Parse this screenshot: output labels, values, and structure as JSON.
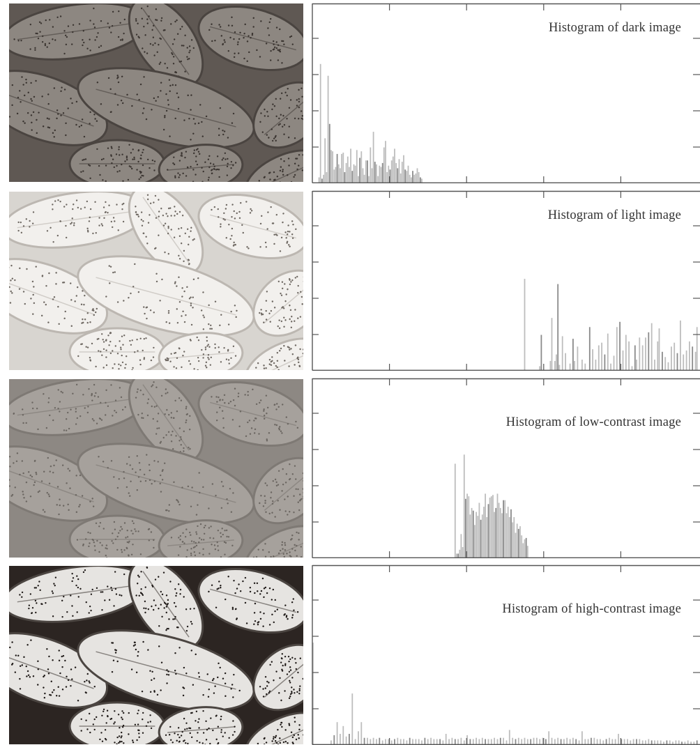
{
  "colors": {
    "frame": "#555555",
    "bar": "#bdbdbd",
    "bar_dark": "#8a8a8a",
    "photo_bg": "#6d6560"
  },
  "panels": [
    {
      "photo": {
        "name": "dark image",
        "bg": "#5f5853",
        "cell": "#8d8781",
        "cell_edge": "#4a4440",
        "dot": "#3a3430"
      },
      "chart_data": {
        "type": "bar",
        "title": "Histogram of dark image",
        "xlabel": "",
        "ylabel": "",
        "xlim": [
          0,
          255
        ],
        "ylim": [
          0,
          100
        ],
        "x": [
          4,
          5,
          6,
          7,
          8,
          9,
          10,
          11,
          12,
          13,
          14,
          15,
          16,
          17,
          18,
          19,
          20,
          21,
          22,
          23,
          24,
          25,
          26,
          27,
          28,
          29,
          30,
          31,
          32,
          33,
          34,
          35,
          36,
          37,
          38,
          39,
          40,
          41,
          42,
          43,
          44,
          45,
          46,
          47,
          48,
          49,
          50,
          51,
          52,
          53,
          54,
          55,
          56,
          57,
          58,
          59,
          60,
          61,
          62,
          63,
          64,
          65,
          66,
          67,
          68,
          69,
          70,
          71,
          72
        ],
        "values": [
          4,
          91,
          3,
          6,
          34,
          8,
          82,
          45,
          25,
          24,
          10,
          12,
          22,
          14,
          11,
          22,
          23,
          8,
          15,
          20,
          12,
          26,
          9,
          14,
          13,
          25,
          5,
          19,
          24,
          11,
          6,
          17,
          17,
          5,
          27,
          11,
          39,
          16,
          14,
          5,
          13,
          12,
          15,
          27,
          32,
          8,
          13,
          10,
          17,
          20,
          26,
          15,
          11,
          18,
          7,
          16,
          21,
          10,
          9,
          13,
          6,
          4,
          9,
          6,
          7,
          11,
          8,
          4,
          3
        ]
      }
    },
    {
      "photo": {
        "name": "light image",
        "bg": "#d8d5d0",
        "cell": "#f2f0ed",
        "cell_edge": "#bcb7b1",
        "dot": "#6e6862"
      },
      "chart_data": {
        "type": "bar",
        "title": "Histogram of light image",
        "xlabel": "",
        "ylabel": "",
        "xlim": [
          0,
          255
        ],
        "ylim": [
          0,
          100
        ],
        "x": [
          140,
          150,
          151,
          157,
          158,
          160,
          161,
          162,
          163,
          165,
          167,
          170,
          172,
          173,
          175,
          178,
          180,
          183,
          185,
          187,
          189,
          191,
          193,
          195,
          197,
          199,
          201,
          203,
          205,
          207,
          209,
          211,
          213,
          214,
          216,
          218,
          220,
          222,
          224,
          226,
          228,
          229,
          231,
          233,
          235,
          237,
          239,
          241,
          243,
          245,
          247,
          249,
          251,
          253,
          254
        ],
        "values": [
          70,
          3,
          27,
          7,
          40,
          7,
          12,
          66,
          4,
          26,
          13,
          5,
          24,
          7,
          18,
          8,
          5,
          33,
          16,
          8,
          19,
          21,
          12,
          28,
          5,
          11,
          33,
          37,
          15,
          27,
          22,
          3,
          19,
          8,
          25,
          19,
          25,
          29,
          36,
          8,
          22,
          32,
          14,
          10,
          6,
          18,
          21,
          13,
          38,
          12,
          15,
          22,
          18,
          14,
          33
        ]
      }
    },
    {
      "photo": {
        "name": "low-contrast image",
        "bg": "#8d8883",
        "cell": "#a6a19c",
        "cell_edge": "#7e7974",
        "dot": "#6b6661"
      },
      "chart_data": {
        "type": "bar",
        "title": "Histogram of low-contrast image",
        "xlabel": "",
        "ylabel": "",
        "xlim": [
          0,
          255
        ],
        "ylim": [
          0,
          100
        ],
        "x": [
          94,
          95,
          96,
          97,
          98,
          99,
          100,
          101,
          102,
          103,
          104,
          105,
          106,
          107,
          108,
          109,
          110,
          111,
          112,
          113,
          114,
          115,
          116,
          117,
          118,
          119,
          120,
          121,
          122,
          123,
          124,
          125,
          126,
          127,
          128,
          129,
          130,
          131,
          132,
          133,
          134,
          135,
          136,
          137,
          138,
          139,
          140,
          141,
          142
        ],
        "values": [
          72,
          3,
          3,
          6,
          18,
          8,
          79,
          45,
          49,
          47,
          33,
          38,
          36,
          25,
          35,
          32,
          42,
          29,
          33,
          39,
          49,
          31,
          41,
          46,
          47,
          48,
          35,
          38,
          49,
          42,
          38,
          34,
          44,
          44,
          34,
          39,
          31,
          37,
          27,
          31,
          19,
          26,
          22,
          24,
          17,
          11,
          14,
          15,
          9
        ]
      }
    },
    {
      "photo": {
        "name": "high-contrast image",
        "bg": "#2c2522",
        "cell": "#e6e4e1",
        "cell_edge": "#4b4541",
        "dot": "#1e1917"
      },
      "chart_data": {
        "type": "bar",
        "title": "Histogram of high-contrast image",
        "xlabel": "",
        "ylabel": "",
        "xlim": [
          0,
          255
        ],
        "ylim": [
          0,
          100
        ],
        "x": [
          0,
          12,
          14,
          16,
          18,
          20,
          22,
          24,
          26,
          28,
          30,
          32,
          34,
          36,
          38,
          40,
          42,
          44,
          46,
          48,
          50,
          52,
          54,
          56,
          58,
          60,
          62,
          64,
          66,
          68,
          70,
          72,
          74,
          76,
          78,
          80,
          82,
          84,
          86,
          88,
          90,
          92,
          94,
          96,
          98,
          100,
          102,
          104,
          106,
          108,
          110,
          112,
          114,
          116,
          118,
          120,
          122,
          124,
          126,
          128,
          130,
          132,
          134,
          136,
          138,
          140,
          142,
          144,
          146,
          148,
          150,
          152,
          154,
          156,
          158,
          160,
          162,
          164,
          166,
          168,
          170,
          172,
          174,
          176,
          178,
          180,
          182,
          184,
          186,
          188,
          190,
          192,
          194,
          196,
          198,
          200,
          202,
          204,
          206,
          208,
          210,
          212,
          214,
          216,
          218,
          220,
          222,
          224,
          226,
          228,
          230,
          232,
          234,
          236,
          238,
          240,
          242,
          244,
          246,
          248,
          250,
          252,
          254
        ],
        "values": [
          78,
          3,
          7,
          17,
          8,
          14,
          6,
          8,
          39,
          4,
          10,
          17,
          5,
          5,
          4,
          5,
          4,
          5,
          3,
          4,
          4,
          3,
          4,
          5,
          4,
          4,
          3,
          5,
          4,
          4,
          4,
          3,
          5,
          4,
          5,
          4,
          4,
          4,
          3,
          8,
          4,
          5,
          4,
          4,
          5,
          3,
          7,
          4,
          4,
          5,
          4,
          5,
          4,
          4,
          4,
          5,
          4,
          5,
          5,
          3,
          11,
          5,
          4,
          5,
          4,
          5,
          4,
          4,
          5,
          5,
          4,
          5,
          4,
          10,
          5,
          4,
          5,
          4,
          4,
          5,
          4,
          5,
          4,
          3,
          10,
          4,
          4,
          5,
          5,
          4,
          4,
          3,
          4,
          5,
          4,
          4,
          8,
          4,
          4,
          4,
          3,
          4,
          4,
          4,
          3,
          3,
          4,
          3,
          3,
          3,
          3,
          2,
          3,
          3,
          2,
          3,
          3,
          2,
          2,
          3,
          2,
          2,
          3
        ]
      }
    }
  ]
}
